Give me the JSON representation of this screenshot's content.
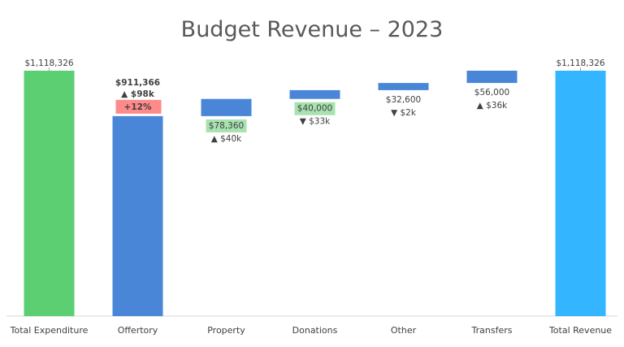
{
  "chart_data": {
    "type": "waterfall",
    "title": "Budget Revenue – 2023",
    "xlabel": "",
    "ylabel": "",
    "ylim": [
      0,
      1180000
    ],
    "grid": false,
    "legend": "none",
    "categories": [
      "Total Expenditure",
      "Offertory",
      "Property",
      "Donations",
      "Other",
      "Transfers",
      "Total Revenue"
    ],
    "bars": [
      {
        "category": "Total Expenditure",
        "kind": "total",
        "start": 0,
        "end": 1118326,
        "value_label": "$1,118,326",
        "color": "#5ccf73"
      },
      {
        "category": "Offertory",
        "kind": "step",
        "start": 0,
        "end": 911366,
        "value_label": "$911,366",
        "value_bold": true,
        "change_label": "▲ $98k",
        "change_bold": true,
        "pct_label": "+12%",
        "pct_color": "#ff8a8a",
        "color": "#4a86d8"
      },
      {
        "category": "Property",
        "kind": "step",
        "start": 911366,
        "end": 989726,
        "value_label": "$78,360",
        "value_highlight": "#a8e2b0",
        "change_label": "▲ $40k",
        "color": "#4a86d8"
      },
      {
        "category": "Donations",
        "kind": "step",
        "start": 989726,
        "end": 1029726,
        "value_label": "$40,000",
        "value_highlight": "#a8e2b0",
        "change_label": "▼ $33k",
        "color": "#4a86d8"
      },
      {
        "category": "Other",
        "kind": "step",
        "start": 1029726,
        "end": 1062326,
        "value_label": "$32,600",
        "change_label": "▼ $2k",
        "color": "#4a86d8"
      },
      {
        "category": "Transfers",
        "kind": "step",
        "start": 1062326,
        "end": 1118326,
        "value_label": "$56,000",
        "change_label": "▲ $36k",
        "color": "#4a86d8"
      },
      {
        "category": "Total Revenue",
        "kind": "total",
        "start": 0,
        "end": 1118326,
        "value_label": "$1,118,326",
        "color": "#33b5ff"
      }
    ]
  }
}
